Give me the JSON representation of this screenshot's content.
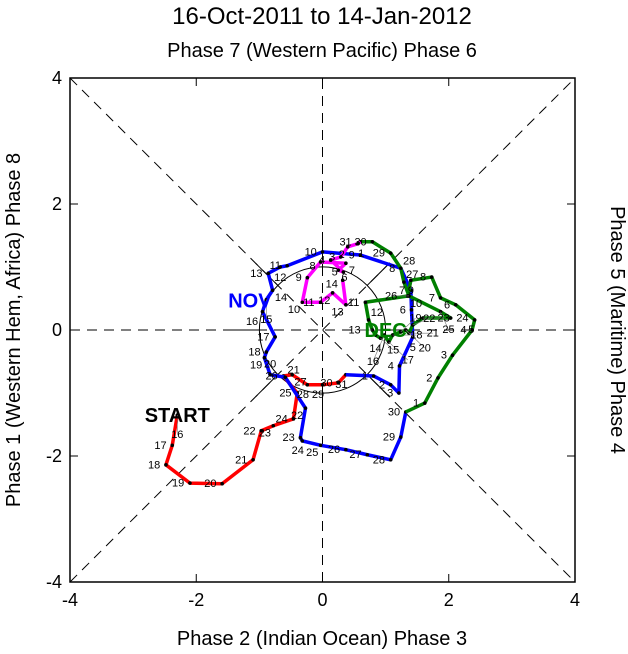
{
  "chart_data": {
    "type": "line",
    "title": "16-Oct-2011 to 14-Jan-2012",
    "top_label": "Phase 7 (Western Pacific) Phase 6",
    "xlabel": "Phase 2 (Indian Ocean) Phase 3",
    "ylabel_left": "Phase 1 (Western Hem, Africa) Phase 8",
    "ylabel_right": "Phase 5 (Maritime) Phase 4",
    "xlim": [
      -4,
      4
    ],
    "ylim": [
      -4,
      4
    ],
    "xticks": [
      "-4",
      "-2",
      "0",
      "2",
      "4"
    ],
    "yticks": [
      "-4",
      "-2",
      "0",
      "2",
      "4"
    ],
    "unit_circle_radius": 1,
    "annotations": [
      {
        "text": "START",
        "x": -2.3,
        "y": -1.35,
        "color": "#000000"
      },
      {
        "text": "NOV",
        "x": -1.15,
        "y": 0.47,
        "color": "#0000ff"
      },
      {
        "text": "DEC",
        "x": 1.0,
        "y": 0.0,
        "color": "#008000"
      }
    ],
    "series": [
      {
        "name": "Oct",
        "color": "#ff0000",
        "start_day": 16,
        "x": [
          -2.3,
          -2.38,
          -2.48,
          -2.1,
          -1.59,
          -1.1,
          -0.97,
          -0.78,
          -0.46,
          -0.4,
          -0.62,
          -0.48,
          -0.24,
          0.0,
          0.25,
          0.37
        ],
        "y": [
          -1.35,
          -1.83,
          -2.14,
          -2.43,
          -2.44,
          -2.06,
          -1.6,
          -1.52,
          -1.41,
          -1.0,
          -0.73,
          -0.71,
          -0.87,
          -0.87,
          -0.84,
          -0.71
        ]
      },
      {
        "name": "Nov",
        "color": "#0000ff",
        "start_day": 1,
        "x": [
          0.81,
          1.08,
          1.21,
          1.22,
          1.43,
          1.41,
          1.4,
          1.24,
          0.6,
          0.0,
          -0.56,
          -0.67,
          -0.86,
          -0.79,
          -0.89,
          -0.95,
          -0.75,
          -0.89,
          -0.92,
          -0.83,
          -0.59,
          -0.27,
          -0.35,
          -0.32,
          -0.03,
          0.37,
          0.71,
          1.08,
          1.24,
          1.32
        ],
        "y": [
          -0.73,
          -0.87,
          -1.0,
          -0.57,
          -0.11,
          0.32,
          0.63,
          0.98,
          1.19,
          1.24,
          1.02,
          1.0,
          0.9,
          0.63,
          0.48,
          0.29,
          -0.11,
          -0.35,
          -0.44,
          -0.71,
          -0.75,
          -1.24,
          -1.71,
          -1.76,
          -1.83,
          -1.9,
          -1.98,
          -2.06,
          -1.7,
          -1.3
        ]
      },
      {
        "name": "Dec",
        "color": "#008000",
        "start_day": 1,
        "x": [
          1.62,
          1.83,
          2.06,
          2.37,
          2.41,
          2.11,
          1.87,
          1.73,
          1.4,
          1.35,
          0.68,
          0.73,
          0.79,
          0.84,
          0.92,
          0.98,
          1.05,
          1.11,
          1.24,
          1.32,
          1.37,
          1.43,
          1.59,
          2.03,
          1.87,
          1.37,
          1.29,
          1.24,
          1.08,
          0.79,
          0.6
        ],
        "y": [
          -1.16,
          -0.76,
          -0.4,
          0.0,
          0.16,
          0.4,
          0.51,
          0.84,
          0.79,
          0.54,
          0.44,
          0.16,
          0.0,
          -0.08,
          -0.13,
          -0.08,
          -0.19,
          -0.08,
          -0.03,
          0.0,
          -0.05,
          0.08,
          0.19,
          0.19,
          0.29,
          0.54,
          0.76,
          0.98,
          1.22,
          1.4,
          1.4
        ]
      },
      {
        "name": "Jan",
        "color": "#ff00ff",
        "start_day": 1,
        "x": [
          0.56,
          0.4,
          0.29,
          0.13,
          0.33,
          0.25,
          0.37,
          -0.03,
          -0.24,
          -0.32,
          -0.03,
          0.16,
          0.37,
          0.32
        ],
        "y": [
          1.37,
          1.32,
          1.16,
          1.11,
          0.92,
          0.95,
          1.06,
          1.08,
          0.83,
          0.44,
          0.44,
          0.59,
          0.4,
          0.79
        ]
      }
    ]
  }
}
